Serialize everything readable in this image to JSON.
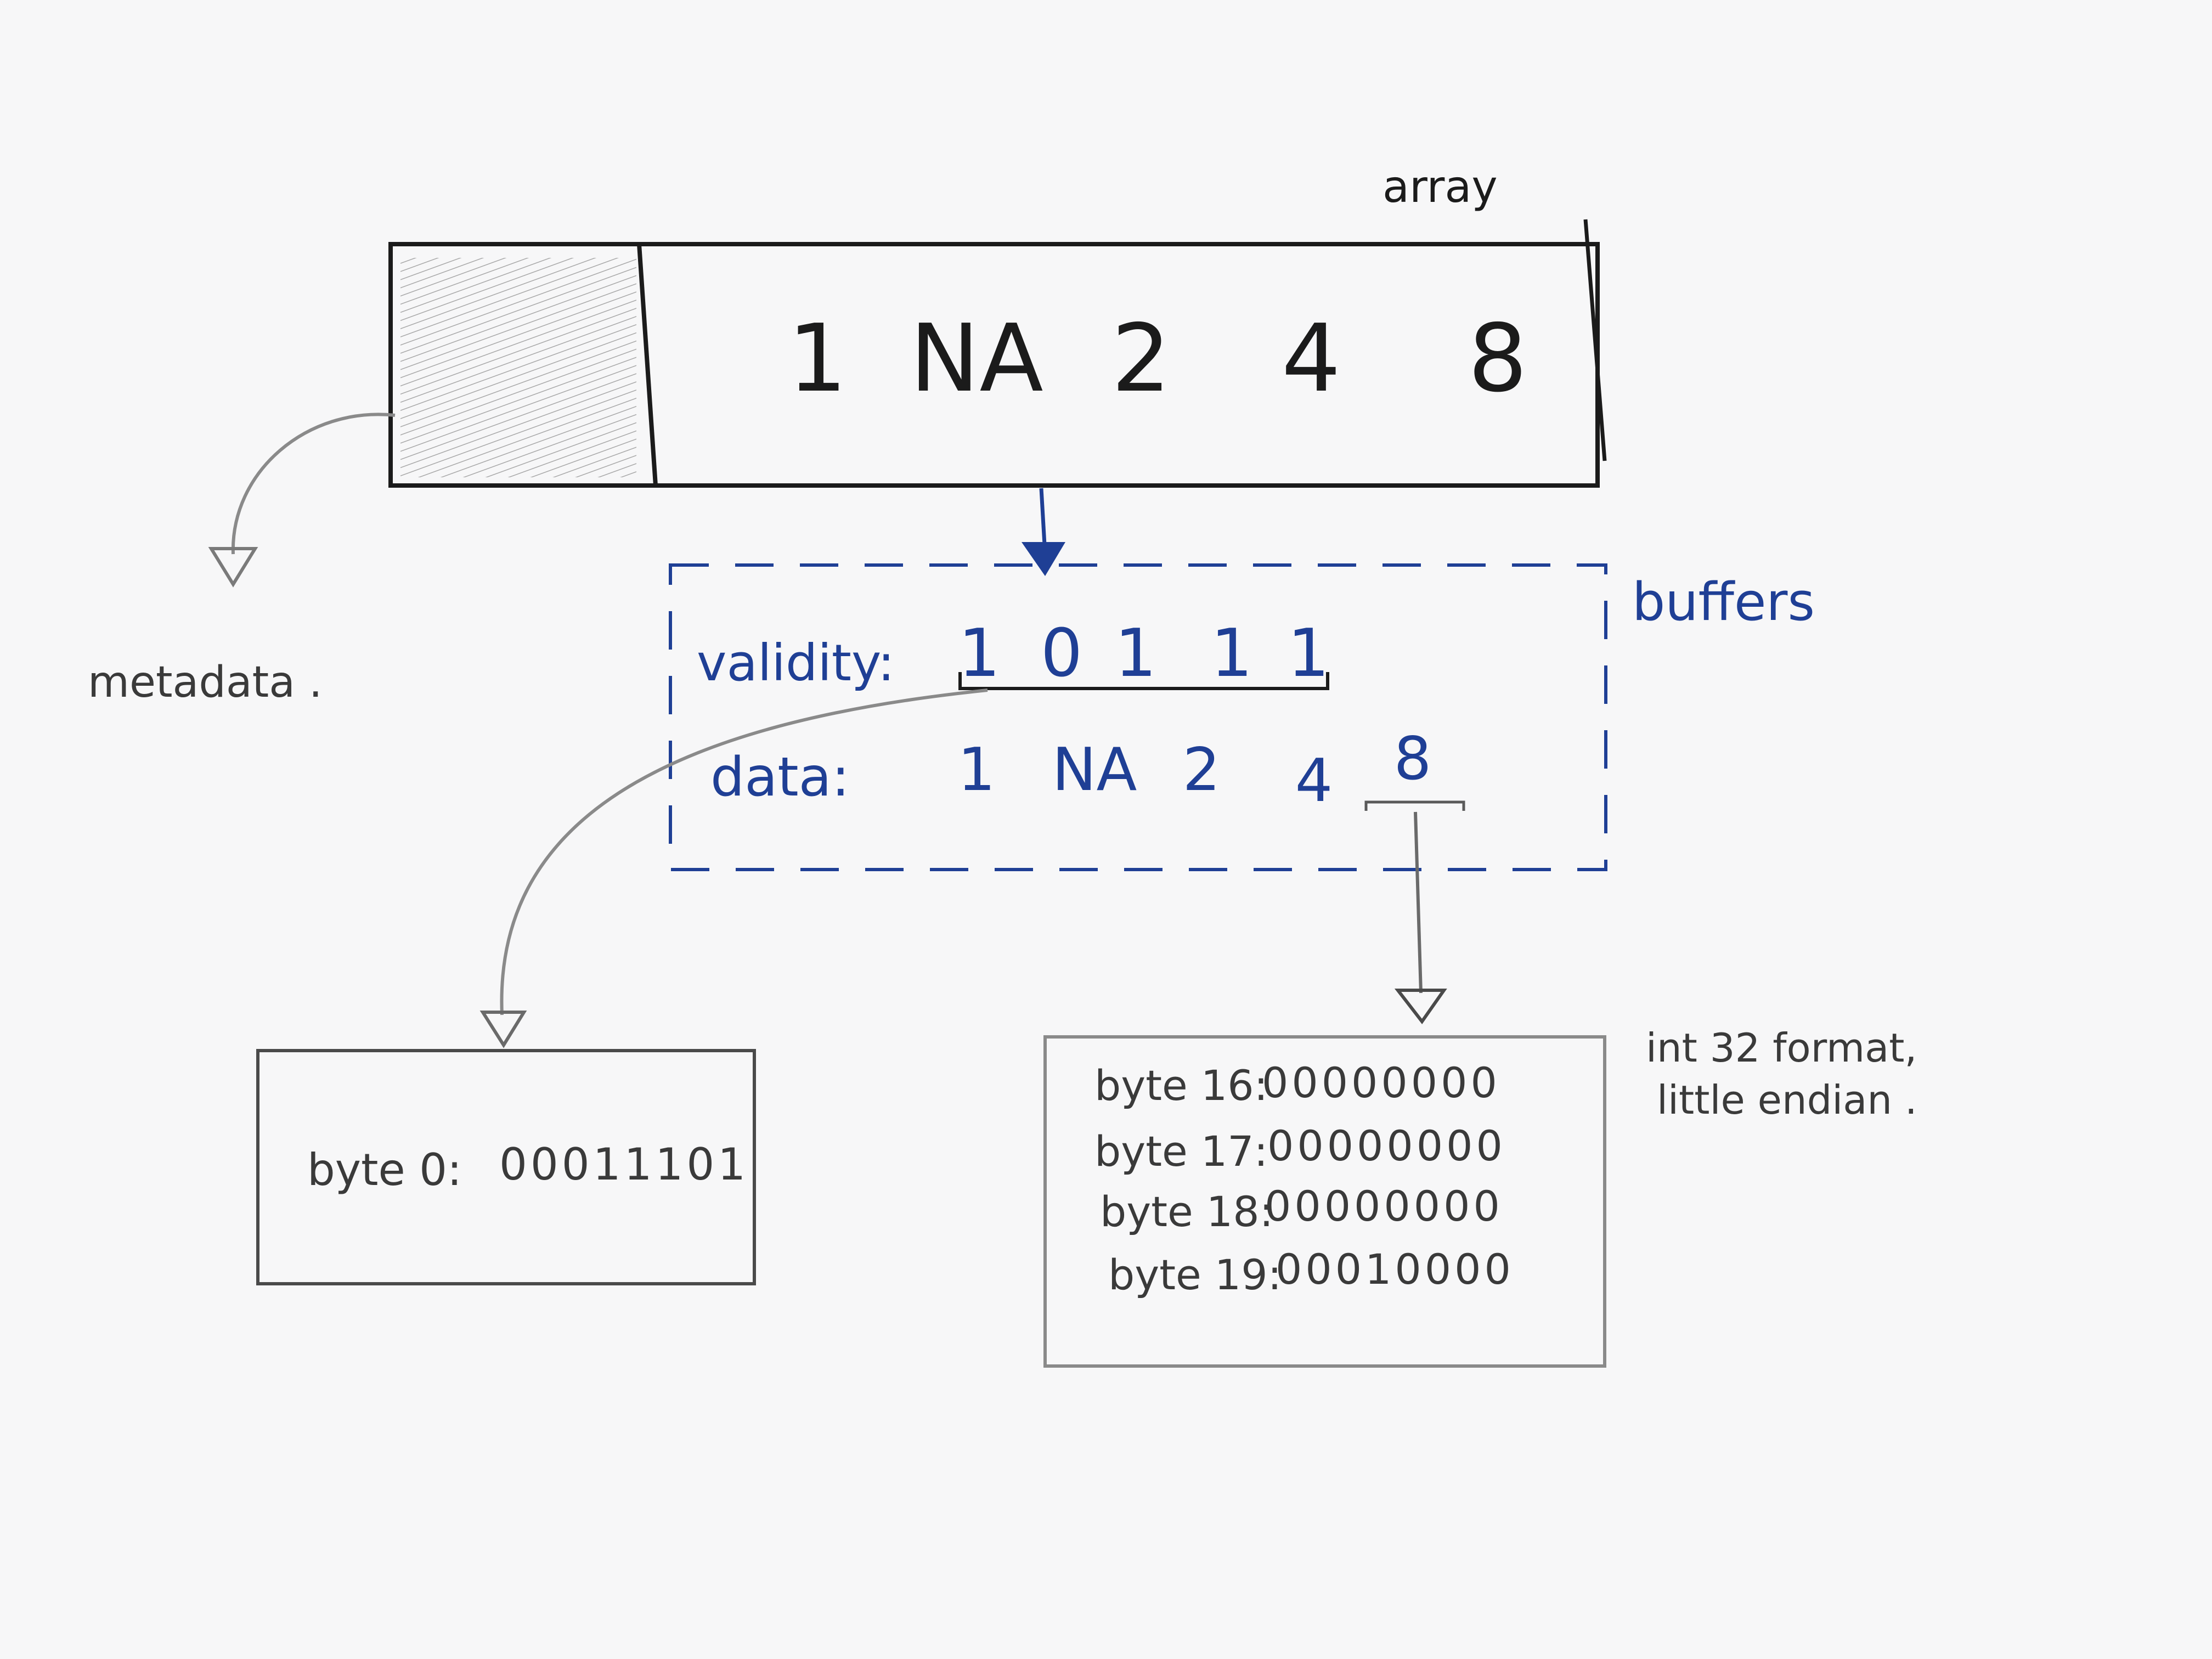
{
  "array": {
    "label": "array",
    "values": [
      "1",
      "NA",
      "2",
      "4",
      "8"
    ]
  },
  "metadata": {
    "label": "metadata ."
  },
  "buffers": {
    "label": "buffers",
    "validity": {
      "label": "validity:",
      "bits": [
        "1",
        "0",
        "1",
        "1",
        "1"
      ]
    },
    "data": {
      "label": "data:",
      "values": [
        "1",
        "NA",
        "2",
        "4",
        "8"
      ]
    }
  },
  "validity_bytes": {
    "rows": [
      {
        "label": "byte 0:",
        "bits": "00011101"
      }
    ]
  },
  "data_bytes": {
    "rows": [
      {
        "label": "byte 16:",
        "bits": "00000000"
      },
      {
        "label": "byte 17:",
        "bits": "00000000"
      },
      {
        "label": "byte 18:",
        "bits": "00000000"
      },
      {
        "label": "byte 19:",
        "bits": "00010000"
      }
    ],
    "note_line1": "int 32 format,",
    "note_line2": "little endian ."
  },
  "colors": {
    "ink": "#1b1b1b",
    "blue": "#1f3f95",
    "pencil": "#7a7a7a",
    "paper": "#f7f7f8"
  }
}
